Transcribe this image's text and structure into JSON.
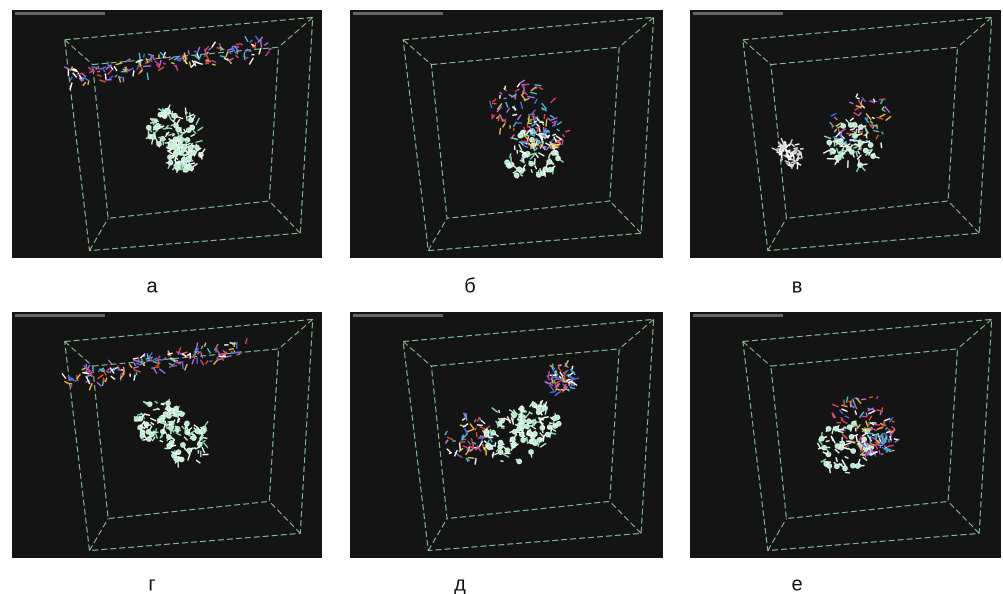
{
  "panels": [
    {
      "label": "а"
    },
    {
      "label": "б"
    },
    {
      "label": "в"
    },
    {
      "label": "г"
    },
    {
      "label": "д"
    },
    {
      "label": "е"
    }
  ]
}
